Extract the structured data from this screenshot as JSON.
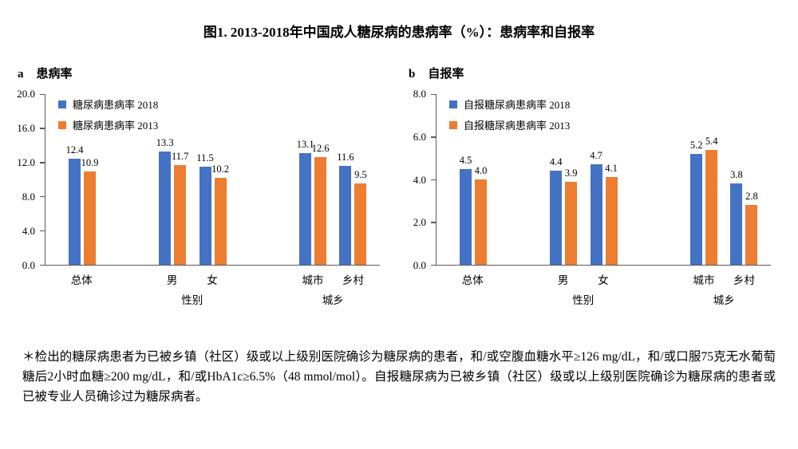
{
  "title": "图1. 2013-2018年中国成人糖尿病的患病率（%）：患病率和自报率",
  "footnote": "＊检出的糖尿病患者为已被乡镇（社区）级或以上级别医院确诊为糖尿病的患者，和/或空腹血糖水平≥126 mg/dL，和/或口服75克无水葡萄糖后2小时血糖≥200 mg/dL，和/或HbA1c≥6.5%（48 mmol/mol）。自报糖尿病为已被乡镇（社区）级或以上级别医院确诊为糖尿病的患者或已被专业人员确诊过为糖尿病者。",
  "colors": {
    "series_2018": "#4472C4",
    "series_2013": "#ED7D31",
    "axis": "#595959"
  },
  "chart_data": [
    {
      "type": "bar",
      "panel_letter": "a",
      "title": "患病率",
      "categories": [
        "总体",
        "男",
        "女",
        "城市",
        "乡村"
      ],
      "series": [
        {
          "name": "糖尿病患病率 2018",
          "color": "#4472C4",
          "values": [
            12.4,
            13.3,
            11.5,
            13.1,
            11.6
          ]
        },
        {
          "name": "糖尿病患病率 2013",
          "color": "#ED7D31",
          "values": [
            10.9,
            11.7,
            10.2,
            12.6,
            9.5
          ]
        }
      ],
      "groups": [
        {
          "label": "性别",
          "categories": [
            1,
            2
          ]
        },
        {
          "label": "城乡",
          "categories": [
            3,
            4
          ]
        }
      ],
      "xlabel": "",
      "ylabel": "",
      "ylim": [
        0,
        20
      ],
      "ytick_step": 4,
      "grid": false,
      "legend_position": "top-left",
      "value_labels": true
    },
    {
      "type": "bar",
      "panel_letter": "b",
      "title": "自报率",
      "categories": [
        "总体",
        "男",
        "女",
        "城市",
        "乡村"
      ],
      "series": [
        {
          "name": "自报糖尿病患病率 2018",
          "color": "#4472C4",
          "values": [
            4.5,
            4.4,
            4.7,
            5.2,
            3.8
          ]
        },
        {
          "name": "自报糖尿病患病率 2013",
          "color": "#ED7D31",
          "values": [
            4.0,
            3.9,
            4.1,
            5.4,
            2.8
          ]
        }
      ],
      "groups": [
        {
          "label": "性别",
          "categories": [
            1,
            2
          ]
        },
        {
          "label": "城乡",
          "categories": [
            3,
            4
          ]
        }
      ],
      "xlabel": "",
      "ylabel": "",
      "ylim": [
        0,
        8
      ],
      "ytick_step": 2,
      "grid": false,
      "legend_position": "top-left",
      "value_labels": true
    }
  ]
}
